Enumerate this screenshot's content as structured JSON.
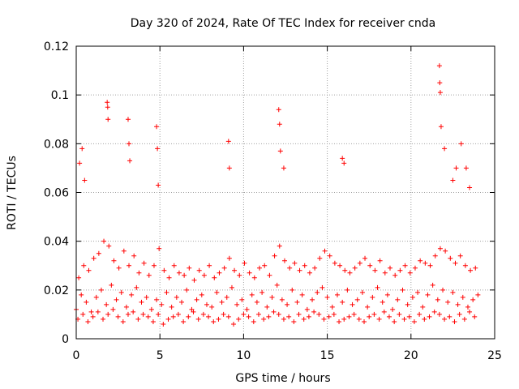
{
  "chart_data": {
    "type": "scatter",
    "title": "Day 320 of 2024, Rate Of TEC Index for receiver cnda",
    "xlabel": "GPS time / hours",
    "ylabel": "ROTI / TECUs",
    "xlim": [
      0,
      25
    ],
    "ylim": [
      0,
      0.12
    ],
    "xticks": [
      0,
      5,
      10,
      15,
      20,
      25
    ],
    "xtick_labels": [
      "0",
      "5",
      "10",
      "15",
      "20",
      "25"
    ],
    "yticks": [
      0,
      0.02,
      0.04,
      0.06,
      0.08,
      0.1,
      0.12
    ],
    "ytick_labels": [
      "0",
      "0.02",
      "0.04",
      "0.06",
      "0.08",
      "0.1",
      "0.12"
    ],
    "grid": true,
    "marker": "+",
    "color": "#ff0000",
    "series": [
      {
        "name": "ROTI",
        "x": [
          0.0,
          0.3,
          0.6,
          0.9,
          1.2,
          1.5,
          1.8,
          2.1,
          2.4,
          2.7,
          3.0,
          3.3,
          3.6,
          3.9,
          4.2,
          4.5,
          4.8,
          5.1,
          5.4,
          5.7,
          6.0,
          6.3,
          6.6,
          6.9,
          7.2,
          7.5,
          7.8,
          8.1,
          8.4,
          8.7,
          9.0,
          9.3,
          9.6,
          9.9,
          10.2,
          10.5,
          10.8,
          11.1,
          11.4,
          11.7,
          12.0,
          12.3,
          12.6,
          12.9,
          13.2,
          13.5,
          13.8,
          14.1,
          14.4,
          14.7,
          15.0,
          15.3,
          15.6,
          15.9,
          16.2,
          16.5,
          16.8,
          17.1,
          17.4,
          17.7,
          18.0,
          18.3,
          18.6,
          18.9,
          19.2,
          19.5,
          19.8,
          20.1,
          20.4,
          20.7,
          21.0,
          21.3,
          21.6,
          21.9,
          22.2,
          22.5,
          22.8,
          23.1,
          23.4,
          23.7,
          24.0,
          0.15,
          0.45,
          0.75,
          1.05,
          1.35,
          1.65,
          1.95,
          2.25,
          2.55,
          2.85,
          3.15,
          3.45,
          3.75,
          4.05,
          4.35,
          4.65,
          4.95,
          5.25,
          5.55,
          5.85,
          6.15,
          6.45,
          6.75,
          7.05,
          7.35,
          7.65,
          7.95,
          8.25,
          8.55,
          8.85,
          9.15,
          9.45,
          9.75,
          10.05,
          10.35,
          10.65,
          10.95,
          11.25,
          11.55,
          11.85,
          12.15,
          12.45,
          12.75,
          13.05,
          13.35,
          13.65,
          13.95,
          14.25,
          14.55,
          14.85,
          15.15,
          15.45,
          15.75,
          16.05,
          16.35,
          16.65,
          16.95,
          17.25,
          17.55,
          17.85,
          18.15,
          18.45,
          18.75,
          19.05,
          19.35,
          19.65,
          19.95,
          20.25,
          20.55,
          20.85,
          21.15,
          21.45,
          21.75,
          22.05,
          22.35,
          22.65,
          22.95,
          23.25,
          23.55,
          23.85,
          0.1,
          0.4,
          0.7,
          1.0,
          1.3,
          1.6,
          1.9,
          2.2,
          2.5,
          2.8,
          3.1,
          3.4,
          3.7,
          4.0,
          4.3,
          4.6,
          4.9,
          5.2,
          5.5,
          5.8,
          6.1,
          6.4,
          6.7,
          7.0,
          7.3,
          7.6,
          7.9,
          8.2,
          8.5,
          8.8,
          9.1,
          9.4,
          9.7,
          10.0,
          10.3,
          10.6,
          10.9,
          11.2,
          11.5,
          11.8,
          12.1,
          12.4,
          12.7,
          13.0,
          13.3,
          13.6,
          13.9,
          14.2,
          14.5,
          14.8,
          15.1,
          15.4,
          15.7,
          16.0,
          16.3,
          16.6,
          16.9,
          17.2,
          17.5,
          17.8,
          18.1,
          18.4,
          18.7,
          19.0,
          19.3,
          19.6,
          19.9,
          20.2,
          20.5,
          20.8,
          21.1,
          21.4,
          21.7,
          22.0,
          22.3,
          22.6,
          22.9,
          23.2,
          23.5,
          23.8,
          0.2,
          0.35,
          0.5,
          1.85,
          1.9,
          1.88,
          3.1,
          3.15,
          3.2,
          4.8,
          4.85,
          4.9,
          9.1,
          9.15,
          12.1,
          12.15,
          12.2,
          12.4,
          15.9,
          16.0,
          21.7,
          21.72,
          21.75,
          21.8,
          22.0,
          22.5,
          22.7,
          23.0,
          23.3,
          23.5
        ],
        "y": [
          0.012,
          0.018,
          0.015,
          0.011,
          0.017,
          0.02,
          0.014,
          0.022,
          0.016,
          0.019,
          0.013,
          0.018,
          0.021,
          0.015,
          0.017,
          0.012,
          0.016,
          0.014,
          0.019,
          0.013,
          0.017,
          0.015,
          0.02,
          0.012,
          0.016,
          0.018,
          0.014,
          0.013,
          0.019,
          0.015,
          0.017,
          0.021,
          0.014,
          0.016,
          0.012,
          0.018,
          0.015,
          0.019,
          0.013,
          0.017,
          0.022,
          0.016,
          0.014,
          0.02,
          0.015,
          0.018,
          0.012,
          0.016,
          0.019,
          0.021,
          0.017,
          0.013,
          0.018,
          0.015,
          0.02,
          0.014,
          0.016,
          0.019,
          0.013,
          0.017,
          0.021,
          0.015,
          0.018,
          0.012,
          0.016,
          0.02,
          0.014,
          0.017,
          0.019,
          0.013,
          0.018,
          0.022,
          0.016,
          0.02,
          0.015,
          0.019,
          0.014,
          0.017,
          0.013,
          0.016,
          0.018,
          0.025,
          0.03,
          0.028,
          0.033,
          0.035,
          0.04,
          0.038,
          0.032,
          0.029,
          0.036,
          0.03,
          0.034,
          0.027,
          0.031,
          0.026,
          0.03,
          0.037,
          0.028,
          0.025,
          0.03,
          0.027,
          0.026,
          0.029,
          0.024,
          0.028,
          0.026,
          0.03,
          0.025,
          0.027,
          0.029,
          0.033,
          0.028,
          0.026,
          0.031,
          0.027,
          0.025,
          0.029,
          0.03,
          0.026,
          0.034,
          0.038,
          0.032,
          0.029,
          0.031,
          0.028,
          0.03,
          0.027,
          0.029,
          0.033,
          0.036,
          0.034,
          0.031,
          0.03,
          0.028,
          0.027,
          0.029,
          0.031,
          0.033,
          0.03,
          0.028,
          0.032,
          0.027,
          0.029,
          0.026,
          0.028,
          0.03,
          0.027,
          0.029,
          0.032,
          0.031,
          0.03,
          0.034,
          0.037,
          0.036,
          0.033,
          0.031,
          0.034,
          0.03,
          0.028,
          0.029,
          0.008,
          0.01,
          0.007,
          0.009,
          0.011,
          0.008,
          0.01,
          0.012,
          0.009,
          0.007,
          0.01,
          0.011,
          0.008,
          0.01,
          0.009,
          0.007,
          0.01,
          0.006,
          0.008,
          0.009,
          0.01,
          0.007,
          0.009,
          0.011,
          0.008,
          0.01,
          0.009,
          0.007,
          0.008,
          0.01,
          0.009,
          0.006,
          0.008,
          0.01,
          0.009,
          0.007,
          0.01,
          0.008,
          0.009,
          0.011,
          0.01,
          0.008,
          0.009,
          0.007,
          0.01,
          0.008,
          0.009,
          0.011,
          0.01,
          0.008,
          0.009,
          0.01,
          0.007,
          0.008,
          0.009,
          0.01,
          0.008,
          0.007,
          0.009,
          0.01,
          0.008,
          0.011,
          0.009,
          0.007,
          0.01,
          0.008,
          0.009,
          0.007,
          0.01,
          0.008,
          0.009,
          0.011,
          0.01,
          0.008,
          0.009,
          0.007,
          0.01,
          0.008,
          0.011,
          0.009,
          0.072,
          0.078,
          0.065,
          0.097,
          0.09,
          0.095,
          0.09,
          0.08,
          0.073,
          0.087,
          0.078,
          0.063,
          0.081,
          0.07,
          0.094,
          0.088,
          0.077,
          0.07,
          0.074,
          0.072,
          0.112,
          0.105,
          0.101,
          0.087,
          0.078,
          0.065,
          0.07,
          0.08,
          0.07,
          0.062
        ]
      }
    ]
  }
}
